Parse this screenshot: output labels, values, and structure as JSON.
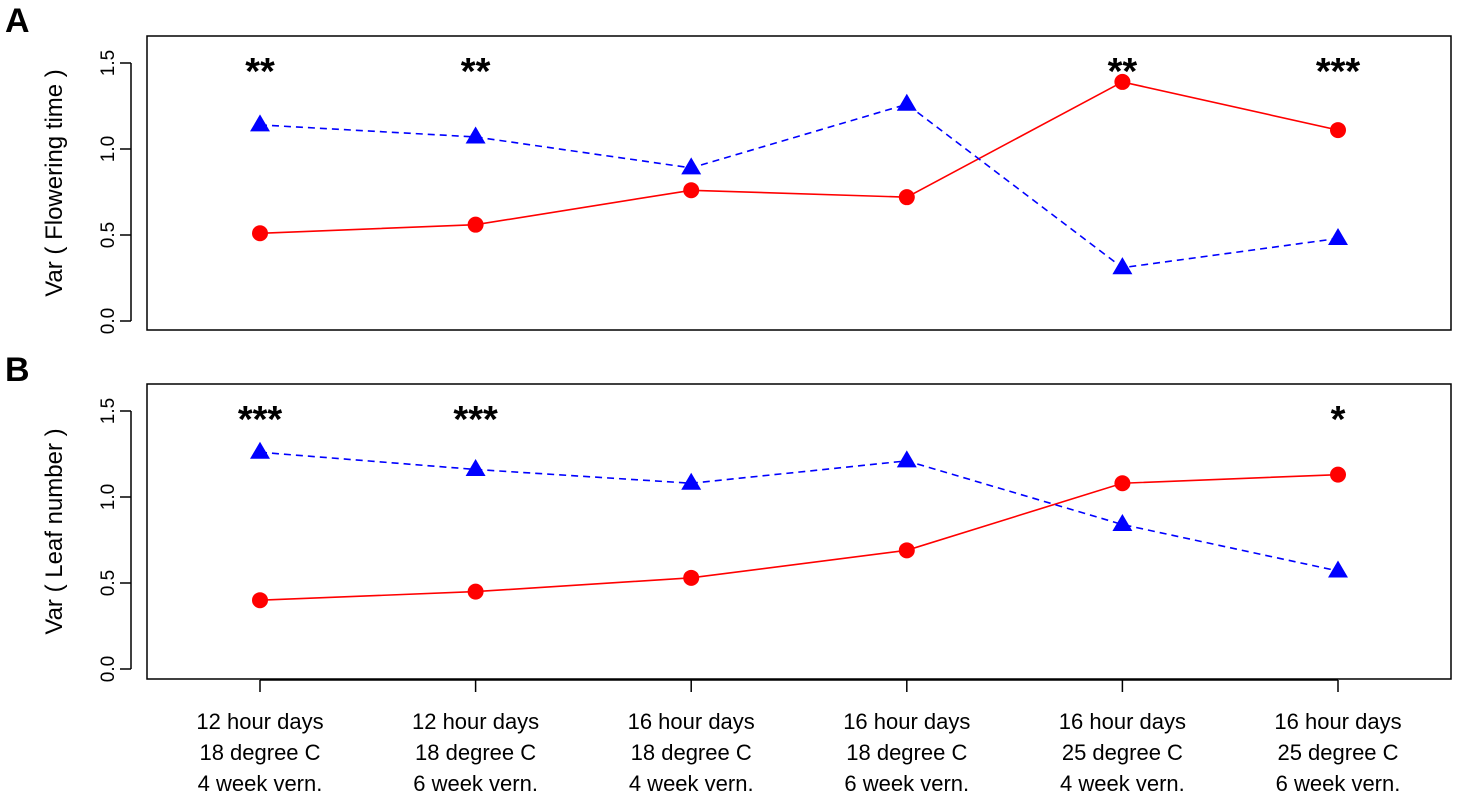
{
  "chart_data": [
    {
      "panel_label": "A",
      "type": "line",
      "ylabel": "Var ( Flowering time )",
      "ylim": [
        0,
        1.5
      ],
      "yticks": [
        "0.0",
        "0.5",
        "1.0",
        "1.5"
      ],
      "categories": [
        "12 hour days|18 degree C|4 week vern.",
        "12 hour days|18 degree C|6 week vern.",
        "16 hour days|18 degree C|4 week vern.",
        "16 hour days|18 degree C|6 week vern.",
        "16 hour days|25 degree C|4 week vern.",
        "16 hour days|25 degree C|6 week vern."
      ],
      "series": [
        {
          "color": "#ff0000",
          "marker": "circle",
          "line": "solid",
          "values": [
            0.51,
            0.56,
            0.76,
            0.72,
            1.39,
            1.11
          ]
        },
        {
          "color": "#0000ff",
          "marker": "triangle",
          "line": "dashed",
          "values": [
            1.14,
            1.07,
            0.89,
            1.26,
            0.31,
            0.48
          ]
        }
      ],
      "annotations": [
        "**",
        "**",
        "",
        "",
        "**",
        "***"
      ]
    },
    {
      "panel_label": "B",
      "type": "line",
      "ylabel": "Var ( Leaf number )",
      "ylim": [
        0,
        1.5
      ],
      "yticks": [
        "0.0",
        "0.5",
        "1.0",
        "1.5"
      ],
      "categories": [
        "12 hour days|18 degree C|4 week vern.",
        "12 hour days|18 degree C|6 week vern.",
        "16 hour days|18 degree C|4 week vern.",
        "16 hour days|18 degree C|6 week vern.",
        "16 hour days|25 degree C|4 week vern.",
        "16 hour days|25 degree C|6 week vern."
      ],
      "series": [
        {
          "color": "#ff0000",
          "marker": "circle",
          "line": "solid",
          "values": [
            0.4,
            0.45,
            0.53,
            0.69,
            1.08,
            1.13
          ]
        },
        {
          "color": "#0000ff",
          "marker": "triangle",
          "line": "dashed",
          "values": [
            1.26,
            1.16,
            1.08,
            1.21,
            0.84,
            0.57
          ]
        }
      ],
      "annotations": [
        "***",
        "***",
        "",
        "",
        "",
        "*"
      ]
    }
  ]
}
